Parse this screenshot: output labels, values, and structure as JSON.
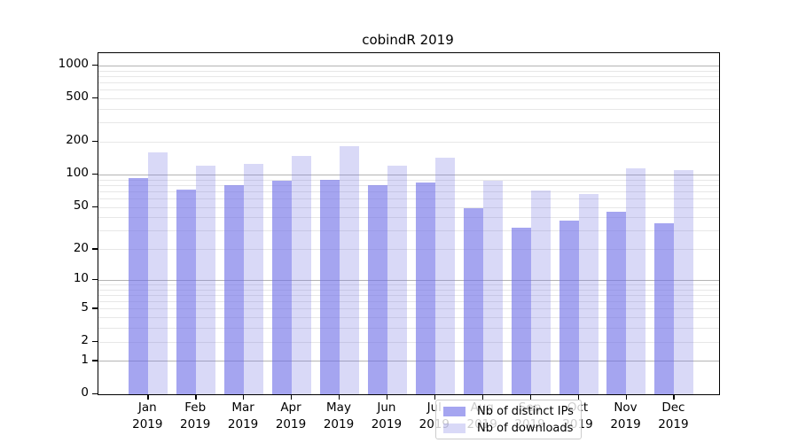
{
  "chart_data": {
    "type": "bar",
    "title": "cobindR 2019",
    "categories": [
      "Jan",
      "Feb",
      "Mar",
      "Apr",
      "May",
      "Jun",
      "Jul",
      "Aug",
      "Sep",
      "Oct",
      "Nov",
      "Dec"
    ],
    "year": "2019",
    "series": [
      {
        "name": "Nb of distinct IPs",
        "color": "rgba(110,110,231,0.62)",
        "values": [
          93,
          72,
          80,
          87,
          90,
          79,
          84,
          49,
          32,
          37,
          45,
          35
        ]
      },
      {
        "name": "Nb of downloads",
        "color": "rgba(119,119,226,0.28)",
        "values": [
          161,
          120,
          125,
          149,
          181,
          120,
          144,
          88,
          71,
          66,
          114,
          110
        ]
      }
    ],
    "xlabel": "",
    "ylabel": "",
    "y_scale": "log10(value+1)",
    "ylim": [
      0,
      1296
    ],
    "y_ticks": [
      0,
      1,
      2,
      5,
      10,
      20,
      50,
      100,
      200,
      500,
      1000
    ],
    "grid": {
      "major_values": [
        1,
        10,
        100,
        1000
      ],
      "minor_values": [
        2,
        3,
        4,
        5,
        6,
        7,
        8,
        9,
        20,
        30,
        40,
        50,
        60,
        70,
        80,
        90,
        200,
        300,
        400,
        500,
        600,
        700,
        800,
        900
      ],
      "major_color": "#b4b4b4",
      "minor_color": "#e7e7e7"
    },
    "legend_position": "lower center"
  }
}
